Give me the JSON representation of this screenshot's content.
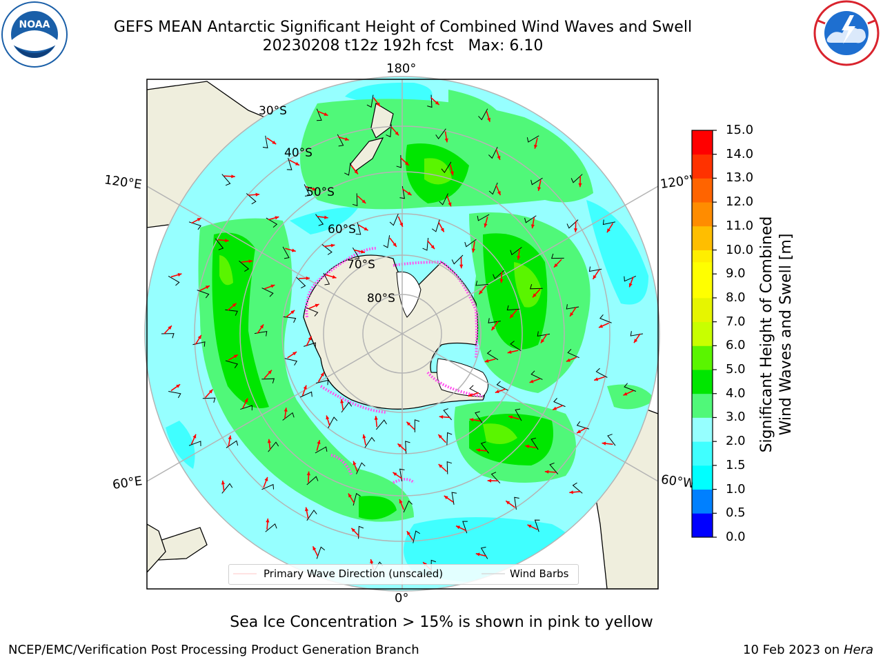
{
  "header": {
    "title_line1": "GEFS MEAN Antarctic Significant Height of Combined Wind Waves and Swell",
    "title_line2": "20230208 t12z 192h fcst   Max: 6.10"
  },
  "logos": {
    "left": {
      "name": "NOAA",
      "ring_text": "NATIONAL OCEANIC AND ATMOSPHERIC ADMINISTRATION · U.S. DEPARTMENT OF COMMERCE",
      "color": "#1a5fa8"
    },
    "right": {
      "name": "NATIONAL WEATHER SERVICE",
      "color": "#d9232d"
    }
  },
  "map": {
    "projection": "south-polar-stereographic",
    "longitude_labels": {
      "top": "180°",
      "bottom": "0°",
      "left_upper": "120°E",
      "left_lower": "60°E",
      "right_upper": "120°W",
      "right_lower": "60°W"
    },
    "latitude_labels": [
      "30°S",
      "40°S",
      "50°S",
      "60°S",
      "70°S",
      "80°S"
    ],
    "colors": {
      "land": "#efeedd",
      "ice_shelf": "#ffffff",
      "sea_ice": "#ff55ee",
      "wave_arrow": "#ff0000",
      "wind_barb": "#000000",
      "graticule": "#b4b4b4"
    }
  },
  "legend": {
    "arrow_label": "Primary Wave Direction (unscaled)",
    "barb_label": "Wind Barbs"
  },
  "colorbar": {
    "label": "Significant Height of Combined\nWind Waves and Swell [m]",
    "unit": "m",
    "ticks": [
      "0.0",
      "0.5",
      "1.0",
      "1.5",
      "2.0",
      "3.0",
      "4.0",
      "5.0",
      "6.0",
      "7.0",
      "8.0",
      "9.0",
      "10.0",
      "11.0",
      "12.0",
      "13.0",
      "14.0",
      "15.0"
    ],
    "bins": [
      {
        "from": 0.0,
        "to": 0.5,
        "color": "#0000ff"
      },
      {
        "from": 0.5,
        "to": 1.0,
        "color": "#0080ff"
      },
      {
        "from": 1.0,
        "to": 1.5,
        "color": "#00ffff"
      },
      {
        "from": 1.5,
        "to": 2.0,
        "color": "#40ffff"
      },
      {
        "from": 2.0,
        "to": 2.5,
        "color": "#96ffff"
      },
      {
        "from": 2.5,
        "to": 3.0,
        "color": "#96ffff"
      },
      {
        "from": 3.0,
        "to": 3.5,
        "color": "#50f879"
      },
      {
        "from": 3.5,
        "to": 4.0,
        "color": "#50f879"
      },
      {
        "from": 4.0,
        "to": 4.5,
        "color": "#00e600"
      },
      {
        "from": 4.5,
        "to": 5.0,
        "color": "#00e600"
      },
      {
        "from": 5.0,
        "to": 5.5,
        "color": "#5af500"
      },
      {
        "from": 5.5,
        "to": 6.0,
        "color": "#5af500"
      },
      {
        "from": 6.0,
        "to": 6.5,
        "color": "#c8ff00"
      },
      {
        "from": 6.5,
        "to": 7.0,
        "color": "#c8ff00"
      },
      {
        "from": 7.0,
        "to": 7.5,
        "color": "#e6f500"
      },
      {
        "from": 7.5,
        "to": 8.0,
        "color": "#e6f500"
      },
      {
        "from": 8.0,
        "to": 8.5,
        "color": "#ffff00"
      },
      {
        "from": 8.5,
        "to": 9.0,
        "color": "#ffff00"
      },
      {
        "from": 9.0,
        "to": 9.5,
        "color": "#ffff00"
      },
      {
        "from": 9.5,
        "to": 10.0,
        "color": "#ffee00"
      },
      {
        "from": 10.0,
        "to": 10.5,
        "color": "#ffbe00"
      },
      {
        "from": 10.5,
        "to": 11.0,
        "color": "#ffbe00"
      },
      {
        "from": 11.0,
        "to": 11.5,
        "color": "#ff8c00"
      },
      {
        "from": 11.5,
        "to": 12.0,
        "color": "#ff8c00"
      },
      {
        "from": 12.0,
        "to": 12.5,
        "color": "#ff6400"
      },
      {
        "from": 12.5,
        "to": 13.0,
        "color": "#ff6400"
      },
      {
        "from": 13.0,
        "to": 13.5,
        "color": "#ff3200"
      },
      {
        "from": 13.5,
        "to": 14.0,
        "color": "#ff3200"
      },
      {
        "from": 14.0,
        "to": 14.5,
        "color": "#ff0000"
      },
      {
        "from": 14.5,
        "to": 15.0,
        "color": "#ff0000"
      }
    ]
  },
  "notes": {
    "sea_ice": "Sea Ice Concentration > 15% is shown in pink to yellow"
  },
  "footer": {
    "producer": "NCEP/EMC/Verification Post Processing Product Generation Branch",
    "date": "10 Feb 2023 on",
    "machine": "Hera"
  }
}
